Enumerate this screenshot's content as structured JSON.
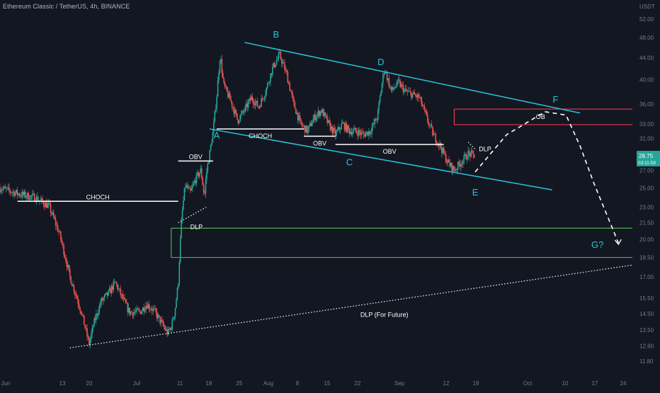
{
  "header": {
    "symbol_title": "Ethereum Classic / TetherUS, 4h, BINANCE"
  },
  "colors": {
    "background": "#131722",
    "candle_up": "#26a69a",
    "candle_down": "#ef5350",
    "annotation_cyan": "#26c6da",
    "axis_text": "#787b86",
    "white_line": "#ffffff",
    "order_block_red": "#f23645",
    "zone_green": "#4caf50"
  },
  "chart_data": {
    "type": "candlestick",
    "interval": "4h",
    "price_axis": {
      "currency_label": "USDT",
      "scale": "log",
      "ticks": [
        "52.00",
        "48.00",
        "44.00",
        "40.00",
        "36.00",
        "33.00",
        "31.00",
        "29.00",
        "27.00",
        "25.00",
        "23.00",
        "21.50",
        "20.00",
        "18.50",
        "17.00",
        "15.50",
        "14.50",
        "13.50",
        "12.60",
        "11.80"
      ],
      "last_price": "28.75",
      "countdown": "03:11:59"
    },
    "time_axis": {
      "ticks": [
        "Jun",
        "13",
        "20",
        "Jul",
        "11",
        "18",
        "25",
        "Aug",
        "8",
        "15",
        "22",
        "Sep",
        "12",
        "19",
        "Oct",
        "10",
        "17",
        "24"
      ]
    },
    "price_path": [
      [
        0,
        25.0
      ],
      [
        6,
        24.3
      ],
      [
        10,
        24.0
      ],
      [
        14,
        23.1
      ],
      [
        17,
        20.5
      ],
      [
        20,
        17.0
      ],
      [
        23,
        14.8
      ],
      [
        25.5,
        12.7
      ],
      [
        27,
        14.0
      ],
      [
        29,
        15.3
      ],
      [
        31,
        15.8
      ],
      [
        33,
        16.6
      ],
      [
        35,
        15.5
      ],
      [
        37,
        14.6
      ],
      [
        40,
        14.6
      ],
      [
        42,
        15.1
      ],
      [
        44,
        14.7
      ],
      [
        46,
        14.0
      ],
      [
        48,
        13.3
      ],
      [
        49,
        13.7
      ],
      [
        50,
        14.6
      ],
      [
        51,
        16.5
      ],
      [
        52,
        22.0
      ],
      [
        53,
        25.3
      ],
      [
        54.5,
        24.5
      ],
      [
        56,
        26.0
      ],
      [
        57.5,
        27.0
      ],
      [
        58.5,
        24.0
      ],
      [
        59,
        26.5
      ],
      [
        60,
        29.0
      ],
      [
        61,
        32.0
      ],
      [
        62,
        37.0
      ],
      [
        63,
        44.5
      ],
      [
        64,
        39.0
      ],
      [
        66,
        36.5
      ],
      [
        68,
        33.5
      ],
      [
        70,
        35.0
      ],
      [
        72,
        37.0
      ],
      [
        74,
        35.5
      ],
      [
        76,
        38.0
      ],
      [
        78,
        42.0
      ],
      [
        80,
        44.5
      ],
      [
        82,
        41.0
      ],
      [
        84,
        36.0
      ],
      [
        86,
        33.0
      ],
      [
        88,
        32.0
      ],
      [
        90,
        34.0
      ],
      [
        92,
        35.0
      ],
      [
        94,
        33.0
      ],
      [
        96,
        31.5
      ],
      [
        98,
        33.0
      ],
      [
        100,
        32.0
      ],
      [
        102,
        32.0
      ],
      [
        104,
        31.5
      ],
      [
        106,
        32.0
      ],
      [
        108,
        34.0
      ],
      [
        110,
        42.0
      ],
      [
        112,
        38.0
      ],
      [
        114,
        39.5
      ],
      [
        116,
        38.0
      ],
      [
        118,
        37.5
      ],
      [
        120,
        37.0
      ],
      [
        122,
        34.0
      ],
      [
        124,
        31.5
      ],
      [
        126,
        30.0
      ],
      [
        128,
        28.0
      ],
      [
        130,
        27.0
      ],
      [
        132,
        28.0
      ],
      [
        134,
        29.0
      ],
      [
        136,
        28.75
      ]
    ],
    "projection_path": [
      [
        136,
        26.8
      ],
      [
        145,
        31.5
      ],
      [
        156,
        34.8
      ],
      [
        162,
        34.3
      ],
      [
        166,
        30.0
      ],
      [
        170,
        25.5
      ],
      [
        174,
        22.0
      ],
      [
        177,
        19.7
      ]
    ],
    "annotations": {
      "points": [
        {
          "label": "A",
          "x": 62,
          "y": 31.0
        },
        {
          "label": "B",
          "x": 79,
          "y": 48.0
        },
        {
          "label": "C",
          "x": 100,
          "y": 27.6
        },
        {
          "label": "D",
          "x": 109,
          "y": 42.6
        },
        {
          "label": "E",
          "x": 136,
          "y": 24.2
        },
        {
          "label": "F",
          "x": 159,
          "y": 36.2
        },
        {
          "label": "G?",
          "x": 171,
          "y": 19.3
        }
      ],
      "trendlines": [
        {
          "from": [
            70,
            47.0
          ],
          "to": [
            166,
            34.6
          ]
        },
        {
          "from": [
            60,
            32.3
          ],
          "to": [
            158,
            24.8
          ]
        }
      ],
      "horizontal_levels": [
        {
          "label": "CHOCH",
          "from": 5,
          "to": 51,
          "price": 23.6
        },
        {
          "label": "OBV",
          "from": 51,
          "to": 61,
          "price": 28.1
        },
        {
          "label": "CHOCH",
          "from": 62,
          "to": 87,
          "price": 32.3
        },
        {
          "label": "OBV",
          "from": 87,
          "to": 96,
          "price": 31.3
        },
        {
          "label": "OBV",
          "from": 96,
          "to": 127,
          "price": 30.2
        }
      ],
      "zones": [
        {
          "label": "OB",
          "kind": "order_block",
          "from": 130,
          "to": 181,
          "top": 35.2,
          "bottom": 32.9
        },
        {
          "label": "",
          "kind": "support",
          "from": 49,
          "to": 181,
          "top": 21.0,
          "bottom": 18.5
        }
      ],
      "dotted_lines": [
        {
          "label": "DLP",
          "from": [
            51,
            21.5
          ],
          "to": [
            59,
            23.0
          ]
        },
        {
          "label": "DLP",
          "from": [
            134,
            30.5
          ],
          "to": [
            136,
            29.6
          ]
        },
        {
          "label": "DLP (For Future)",
          "from": [
            20,
            12.5
          ],
          "to": [
            181,
            17.9
          ]
        }
      ]
    }
  }
}
